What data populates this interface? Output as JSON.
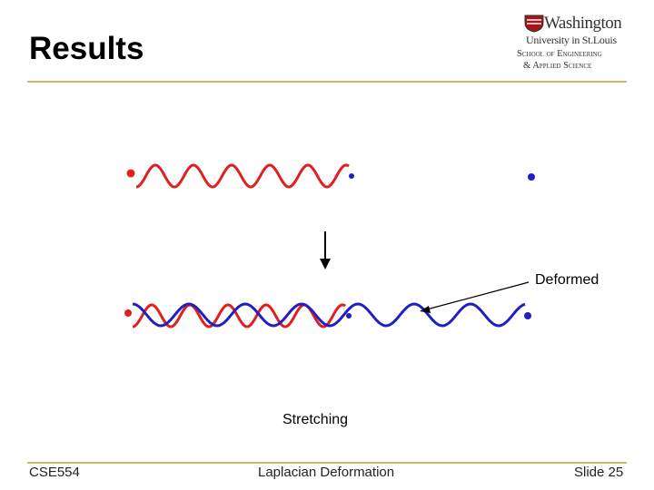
{
  "slide": {
    "title": "Results",
    "logo": {
      "line1": "Washington",
      "line2": "University in St.Louis",
      "line3": "School of Engineering",
      "line4": "& Applied Science"
    },
    "labels": {
      "deformed": "Deformed",
      "stretching": "Stretching"
    },
    "colors": {
      "original_curve": "#e02020",
      "deformed_curve": "#2020c0",
      "rule": "#d4b86a"
    }
  },
  "footer": {
    "course": "CSE554",
    "topic": "Laplacian Deformation",
    "page": "Slide 25"
  }
}
